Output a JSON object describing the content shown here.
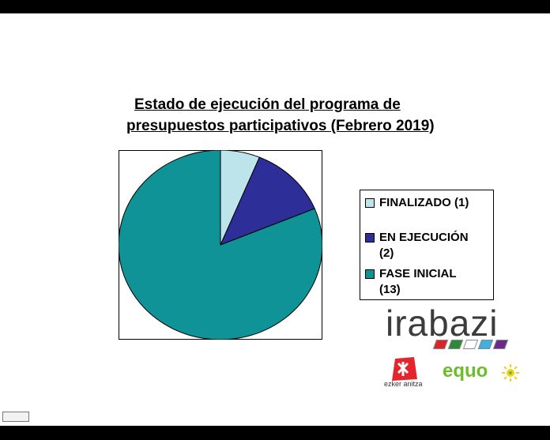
{
  "chart_data": {
    "type": "pie",
    "title": "Estado de ejecución del programa de presupuestos participativos (Febrero 2019)",
    "title_lines": [
      "Estado de ejecución del programa de",
      "presupuestos participativos (Febrero 2019)"
    ],
    "categories": [
      "FINALIZADO",
      "EN EJECUCIÓN",
      "FASE INICIAL"
    ],
    "values": [
      1,
      2,
      13
    ],
    "colors": [
      "#bde4ea",
      "#2e2e99",
      "#109396"
    ],
    "legend": {
      "placement": "right",
      "items": [
        {
          "line1": "FINALIZADO (1)",
          "line2": ""
        },
        {
          "line1": "EN EJECUCIÓN",
          "line2": "(2)"
        },
        {
          "line1": "FASE INICIAL",
          "line2": "(13)"
        }
      ]
    }
  },
  "logos": {
    "irabazi": "irabazi",
    "ezker": "ezker anitza",
    "equo": "equo",
    "stripe_colors": [
      "#d9242a",
      "#2d8a3a",
      "#ffffff",
      "#3fb0e0",
      "#6a2a8c"
    ]
  }
}
